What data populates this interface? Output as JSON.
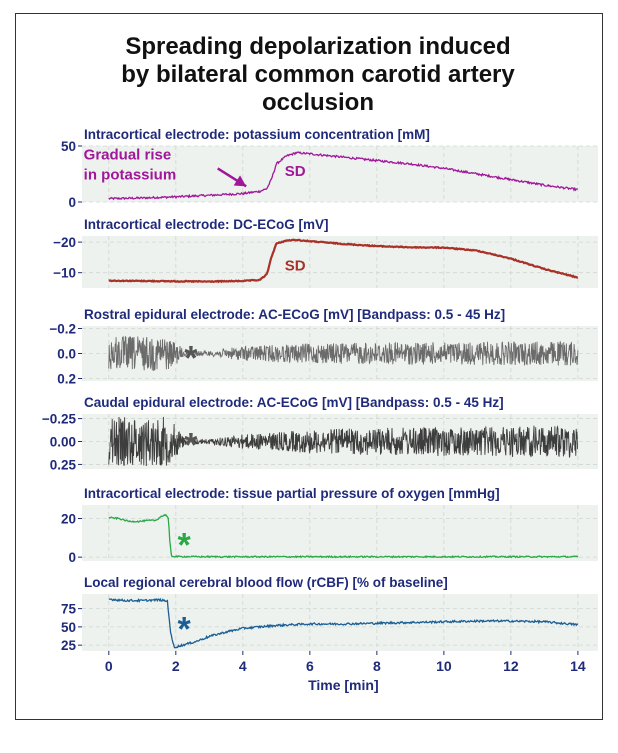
{
  "title_lines": [
    "Spreading depolarization induced",
    "by bilateral common carotid artery",
    "occlusion"
  ],
  "colors": {
    "title": "#111111",
    "panel_title": "#1f2a7a",
    "tick": "#1f2a7a",
    "panel_bg": "#eef2ef",
    "grid": "#cfd6d2",
    "potassium": "#a0179a",
    "dc_ecog": "#a83227",
    "rostral": "#6b6b6b",
    "caudal": "#3d3d3d",
    "oxygen": "#2aa846",
    "rcbf": "#1b5f95",
    "asterisk_gray": "#555555",
    "frame": "#333333"
  },
  "chart_data": {
    "type": "line",
    "title": "Spreading depolarization induced by bilateral common carotid artery occlusion",
    "xlabel": "Time [min]",
    "xlim": [
      -0.8,
      14.6
    ],
    "xticks": [
      0,
      2,
      4,
      6,
      8,
      10,
      12,
      14
    ],
    "grid": true,
    "panels": [
      {
        "id": "potassium",
        "title": "Intracortical electrode: potassium concentration [mM]",
        "ylim": [
          0,
          50
        ],
        "inverted": false,
        "yticks": [
          {
            "v": 50,
            "label": "50"
          },
          {
            "v": 0,
            "label": "0"
          }
        ],
        "series": [
          {
            "color_key": "potassium",
            "noise": 0.9,
            "x": [
              0,
              1,
              2,
              3,
              4,
              4.5,
              4.72,
              4.85,
              5.0,
              5.3,
              5.6,
              6,
              7,
              8,
              9,
              10,
              11,
              12,
              13,
              14
            ],
            "y": [
              3,
              3.6,
              4.6,
              6,
              7.5,
              9.5,
              12,
              20,
              34,
              41,
              44,
              43,
              40,
              37,
              34,
              30,
              25,
              20,
              15,
              11
            ]
          }
        ],
        "annotations": [
          {
            "kind": "text",
            "text": "Gradual rise",
            "x": -0.75,
            "y": 38,
            "color_key": "potassium",
            "size": 15
          },
          {
            "kind": "text",
            "text": "in potassium",
            "x": -0.75,
            "y": 20,
            "color_key": "potassium",
            "size": 15
          },
          {
            "kind": "text",
            "text": "SD",
            "x": 5.25,
            "y": 23,
            "color_key": "potassium",
            "size": 15
          },
          {
            "kind": "arrow",
            "x1": 3.25,
            "y1": 30,
            "x2": 4.1,
            "y2": 14,
            "color_key": "potassium"
          }
        ]
      },
      {
        "id": "dc",
        "title": "Intracortical electrode: DC-ECoG [mV]",
        "ylim": [
          -22,
          -5
        ],
        "inverted": true,
        "yticks": [
          {
            "v": -20,
            "label": "−20"
          },
          {
            "v": -10,
            "label": "−10"
          }
        ],
        "series": [
          {
            "color_key": "dc_ecog",
            "noise": 0.15,
            "x": [
              0,
              1,
              2,
              3,
              4,
              4.5,
              4.72,
              4.85,
              5.0,
              5.3,
              5.6,
              6,
              7,
              8,
              9,
              10,
              11,
              12,
              13,
              14
            ],
            "y": [
              -7.4,
              -7.3,
              -7.2,
              -7.1,
              -7.3,
              -7.6,
              -9.5,
              -15,
              -19.5,
              -20.5,
              -20.7,
              -20.3,
              -19.4,
              -18.7,
              -18.3,
              -18.2,
              -17.2,
              -14.6,
              -11.2,
              -8.4
            ]
          }
        ],
        "annotations": [
          {
            "kind": "text",
            "text": "SD",
            "x": 5.25,
            "y": -10.8,
            "color_key": "dc_ecog",
            "size": 15
          }
        ]
      },
      {
        "id": "rostral",
        "title": "Rostral epidural electrode: AC-ECoG [mV] [Bandpass: 0.5 - 45 Hz]",
        "ylim": [
          -0.22,
          0.22
        ],
        "inverted": true,
        "yticks": [
          {
            "v": -0.2,
            "label": "−0.2"
          },
          {
            "v": 0,
            "label": "0.0"
          },
          {
            "v": 0.2,
            "label": "0.2"
          }
        ],
        "series": [
          {
            "color_key": "rostral",
            "kind": "noise",
            "amp_x": [
              0,
              1.7,
              1.95,
              2.3,
              3,
              4,
              5,
              6,
              8,
              10,
              12,
              14
            ],
            "amp": [
              0.14,
              0.14,
              0.1,
              0.02,
              0.02,
              0.06,
              0.07,
              0.08,
              0.09,
              0.09,
              0.095,
              0.1
            ]
          }
        ],
        "annotations": [
          {
            "kind": "text",
            "text": "*",
            "x": 2.25,
            "y": -0.02,
            "color_key": "asterisk_gray",
            "size": 34
          }
        ]
      },
      {
        "id": "caudal",
        "title": "Caudal epidural electrode: AC-ECoG [mV] [Bandpass: 0.5 - 45 Hz]",
        "ylim": [
          -0.3,
          0.3
        ],
        "inverted": true,
        "yticks": [
          {
            "v": -0.25,
            "label": "−0.25"
          },
          {
            "v": 0,
            "label": "0.00"
          },
          {
            "v": 0.25,
            "label": "0.25"
          }
        ],
        "series": [
          {
            "color_key": "caudal",
            "kind": "noise",
            "amp_x": [
              0,
              1.7,
              1.95,
              2.3,
              3,
              4,
              5,
              6,
              8,
              10,
              12,
              14
            ],
            "amp": [
              0.27,
              0.27,
              0.2,
              0.03,
              0.03,
              0.08,
              0.1,
              0.13,
              0.15,
              0.16,
              0.17,
              0.18
            ]
          }
        ],
        "annotations": [
          {
            "kind": "text",
            "text": "*",
            "x": 2.25,
            "y": -0.04,
            "color_key": "asterisk_gray",
            "size": 34
          }
        ]
      },
      {
        "id": "oxygen",
        "title": "Intracortical electrode: tissue partial pressure of oxygen [mmHg]",
        "ylim": [
          -2,
          27
        ],
        "inverted": false,
        "yticks": [
          {
            "v": 20,
            "label": "20"
          },
          {
            "v": 0,
            "label": "0"
          }
        ],
        "series": [
          {
            "color_key": "oxygen",
            "noise": 0.35,
            "x": [
              0,
              0.3,
              0.6,
              0.9,
              1.2,
              1.4,
              1.55,
              1.7,
              1.78,
              1.82,
              1.87,
              2.0,
              3,
              4,
              6,
              8,
              10,
              12,
              14
            ],
            "y": [
              20.5,
              20,
              18.5,
              18.5,
              19,
              19,
              21,
              22,
              20,
              8,
              0.5,
              0.3,
              0.2,
              0.2,
              0.2,
              0.2,
              0.2,
              0.2,
              0.2
            ]
          }
        ],
        "annotations": [
          {
            "kind": "text",
            "text": "*",
            "x": 2.05,
            "y": 10,
            "color_key": "oxygen",
            "size": 34
          }
        ]
      },
      {
        "id": "rcbf",
        "title": "Local regional cerebral blood flow (rCBF) [% of baseline]",
        "ylim": [
          17,
          95
        ],
        "inverted": false,
        "yticks": [
          {
            "v": 75,
            "label": "75"
          },
          {
            "v": 50,
            "label": "50"
          },
          {
            "v": 25,
            "label": "25"
          }
        ],
        "series": [
          {
            "color_key": "rcbf",
            "noise": 1.4,
            "x": [
              0,
              0.5,
              1.0,
              1.5,
              1.75,
              1.85,
              1.95,
              2.2,
              2.6,
              3,
              3.5,
              4,
              5,
              6,
              7,
              8,
              9,
              10,
              11,
              12,
              13,
              14
            ],
            "y": [
              88,
              86,
              86,
              87,
              85,
              40,
              22,
              25,
              30,
              37,
              43,
              48,
              52,
              54,
              54,
              55,
              56,
              57,
              58,
              58,
              57,
              53
            ]
          }
        ],
        "annotations": [
          {
            "kind": "text",
            "text": "*",
            "x": 2.05,
            "y": 57,
            "color_key": "rcbf",
            "size": 34
          }
        ]
      }
    ]
  }
}
